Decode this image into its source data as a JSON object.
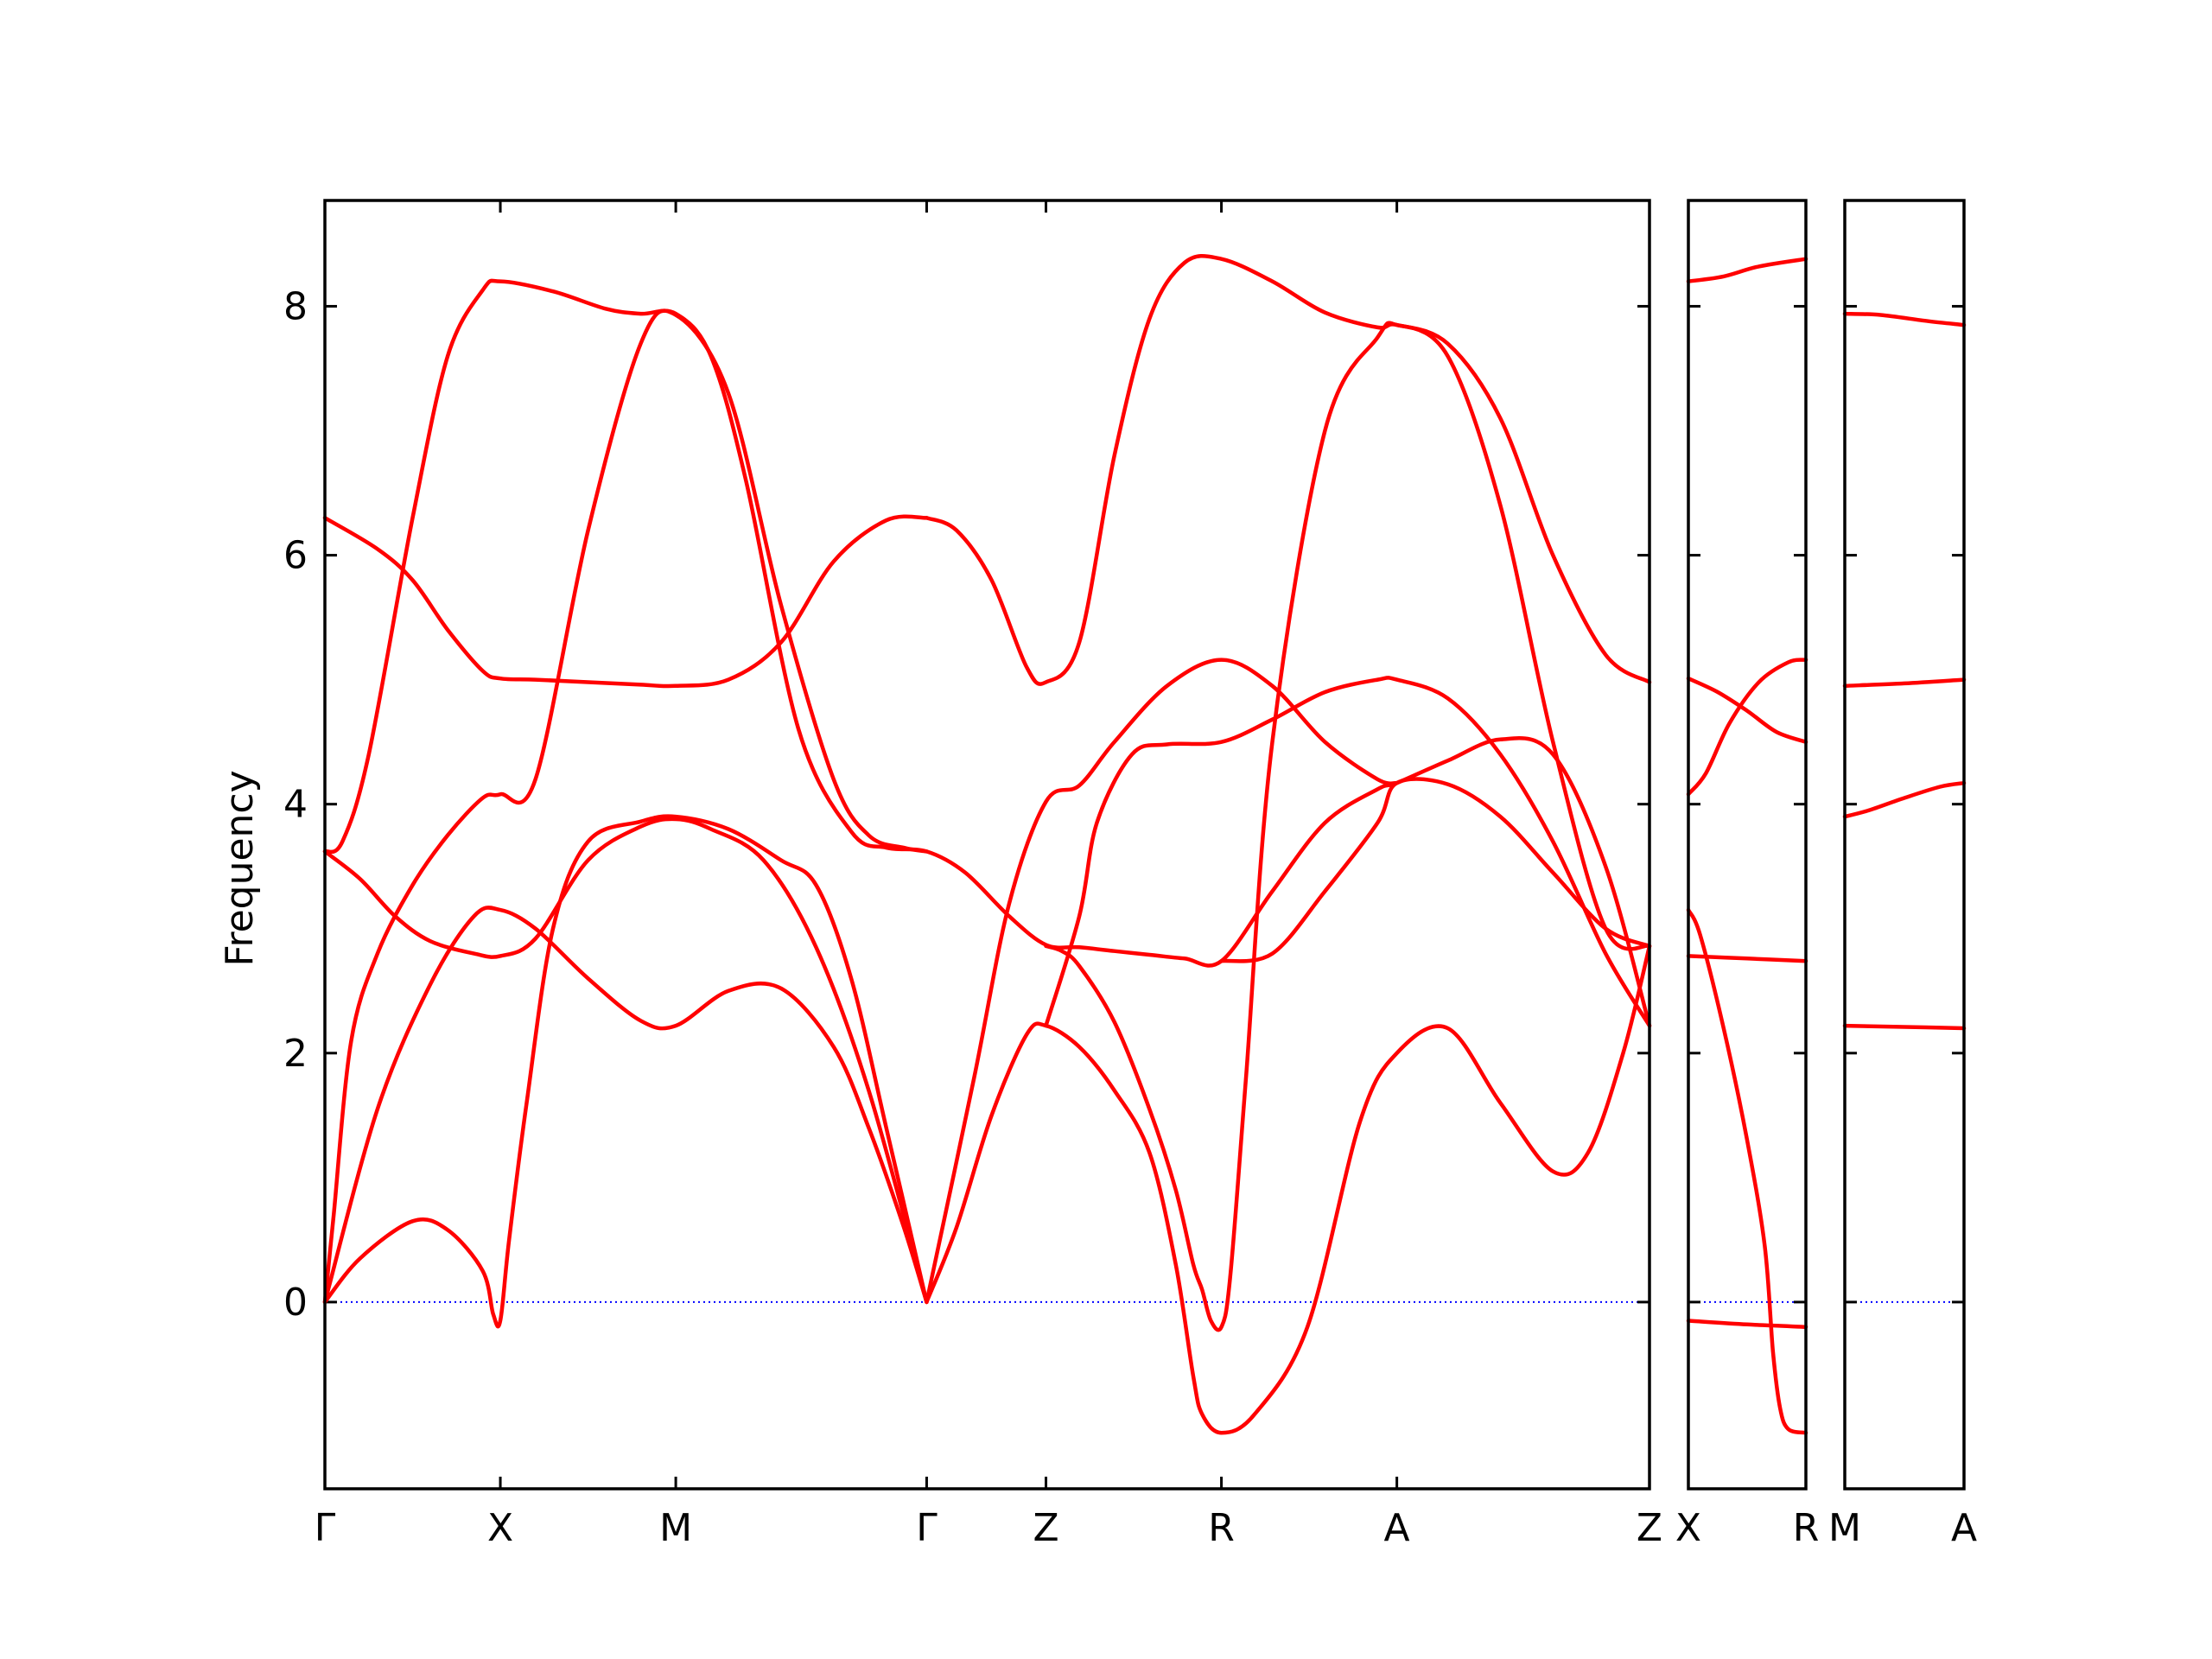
{
  "colors": {
    "band": "#ff0000",
    "zero_line": "#0000ff",
    "frame": "#000000"
  },
  "chart_data": {
    "type": "line",
    "title": "",
    "xlabel": "",
    "ylabel": "Frequency",
    "ylim": [
      -1.5,
      8.85
    ],
    "yticks": [
      0,
      2,
      4,
      6,
      8
    ],
    "grid": false,
    "legend": "none",
    "zero_line": {
      "y": 0,
      "style": "dotted"
    },
    "panels": [
      {
        "xlim": [
          0,
          7.55
        ],
        "ticks": [
          {
            "x": 0,
            "label": "Γ"
          },
          {
            "x": 1.0,
            "label": "X"
          },
          {
            "x": 2.0,
            "label": "M"
          },
          {
            "x": 3.43,
            "label": "Γ"
          },
          {
            "x": 4.11,
            "label": "Z"
          },
          {
            "x": 5.11,
            "label": "R"
          },
          {
            "x": 6.11,
            "label": "A"
          },
          {
            "x": 7.55,
            "label": "Z"
          }
        ],
        "series": [
          {
            "x": [
              0,
              0.1,
              0.25,
              0.5,
              0.7,
              0.9,
              1.0,
              1.3,
              1.6,
              1.8,
              2.0,
              2.2,
              2.4,
              2.7,
              3.0,
              3.2,
              3.43,
              3.65,
              3.9,
              4.11,
              4.3,
              4.5,
              4.7,
              4.9,
              5.11,
              5.4,
              5.7,
              6.0,
              6.11,
              6.4,
              6.7,
              7.0,
              7.3,
              7.55
            ],
            "y": [
              3.62,
              3.7,
              4.4,
              6.3,
              7.6,
              8.13,
              8.2,
              8.12,
              7.98,
              7.94,
              7.94,
              7.6,
              6.6,
              4.6,
              3.78,
              3.65,
              3.62,
              3.45,
              3.1,
              2.87,
              2.85,
              2.82,
              2.79,
              2.76,
              2.74,
              3.3,
              3.85,
              4.12,
              4.17,
              4.35,
              4.52,
              4.4,
              3.5,
              2.22
            ]
          },
          {
            "x": [
              0,
              0.05,
              0.15,
              0.3,
              0.5,
              0.7,
              0.9,
              1.0,
              1.2,
              1.5,
              1.8,
              2.0,
              2.3,
              2.6,
              2.9,
              3.1,
              3.3,
              3.43
            ],
            "y": [
              0,
              0.7,
              2.1,
              2.8,
              3.35,
              3.75,
              4.05,
              4.08,
              4.2,
              6.2,
              7.7,
              7.93,
              7.3,
              5.6,
              4.2,
              3.75,
              3.65,
              3.62
            ]
          },
          {
            "x": [
              0,
              0.3,
              0.5,
              0.7,
              0.9,
              1.0,
              1.2,
              1.5,
              1.8,
              2.0,
              2.3,
              2.6,
              2.9,
              3.2,
              3.43
            ],
            "y": [
              6.3,
              6.05,
              5.8,
              5.4,
              5.07,
              5.01,
              5.0,
              4.98,
              4.96,
              4.95,
              5.0,
              5.3,
              5.95,
              6.28,
              6.3
            ]
          },
          {
            "x": [
              0,
              0.2,
              0.4,
              0.6,
              0.85,
              1.0,
              1.2,
              1.5,
              1.8,
              2.0,
              2.2,
              2.5,
              2.8,
              3.1,
              3.43
            ],
            "y": [
              3.62,
              3.4,
              3.1,
              2.9,
              2.8,
              2.78,
              2.92,
              3.55,
              3.82,
              3.88,
              3.8,
              3.55,
              2.85,
              1.7,
              0
            ]
          },
          {
            "x": [
              0,
              0.3,
              0.6,
              0.85,
              1.0,
              1.2,
              1.5,
              1.8,
              2.0,
              2.3,
              2.6,
              2.9,
              3.1,
              3.3,
              3.43
            ],
            "y": [
              0,
              1.55,
              2.55,
              3.1,
              3.15,
              3.0,
              2.6,
              2.26,
              2.22,
              2.5,
              2.52,
              2.05,
              1.4,
              0.6,
              0
            ]
          },
          {
            "x": [
              0,
              0.2,
              0.5,
              0.7,
              0.9,
              0.96,
              1.0,
              1.05,
              1.15,
              1.3,
              1.5,
              1.8,
              2.0,
              2.3,
              2.6,
              2.8,
              3.0,
              3.2,
              3.43
            ],
            "y": [
              0,
              0.35,
              0.65,
              0.58,
              0.25,
              -0.1,
              -0.15,
              0.5,
              1.6,
              3.0,
              3.7,
              3.86,
              3.9,
              3.8,
              3.55,
              3.35,
              2.6,
              1.4,
              0
            ]
          },
          {
            "x": [
              3.43,
              3.7,
              3.9,
              4.11,
              4.3,
              4.5,
              4.8,
              5.11,
              5.4,
              5.7,
              6.0,
              6.11
            ],
            "y": [
              0,
              1.8,
              3.2,
              4.02,
              4.15,
              4.5,
              4.95,
              5.16,
              4.95,
              4.5,
              4.2,
              4.17
            ]
          },
          {
            "x": [
              3.43,
              3.6,
              3.8,
              4.0,
              4.11,
              4.3,
              4.5,
              4.7,
              4.85,
              4.95,
              5.0,
              5.11,
              5.3,
              5.6,
              5.9,
              6.11,
              6.4,
              6.7,
              7.0,
              7.2,
              7.4,
              7.55
            ],
            "y": [
              0,
              0.6,
              1.5,
              2.15,
              2.22,
              2.05,
              1.7,
              1.2,
              0.3,
              -0.6,
              -0.9,
              -1.05,
              -0.9,
              -0.2,
              1.45,
              2.0,
              2.2,
              1.6,
              1.05,
              1.2,
              2.0,
              2.86
            ]
          },
          {
            "x": [
              4.11,
              4.2,
              4.3,
              4.5,
              4.7,
              4.85,
              4.95,
              5.0,
              5.05,
              5.11,
              5.16,
              5.25,
              5.4,
              5.7,
              6.0,
              6.11,
              6.4,
              6.7,
              7.0,
              7.3,
              7.55
            ],
            "y": [
              2.86,
              2.82,
              2.7,
              2.25,
              1.55,
              0.9,
              0.3,
              0.1,
              -0.15,
              -0.2,
              0.2,
              1.8,
              4.5,
              7.0,
              7.75,
              7.85,
              7.6,
              6.4,
              4.5,
              3.0,
              2.86
            ]
          },
          {
            "x": [
              4.11,
              4.3,
              4.4,
              4.6,
              4.8,
              5.11,
              5.4,
              5.7,
              6.0,
              6.11,
              6.4,
              6.7,
              7.0,
              7.3,
              7.55
            ],
            "y": [
              2.22,
              3.1,
              3.85,
              4.4,
              4.48,
              4.5,
              4.68,
              4.9,
              5.0,
              5.0,
              4.85,
              4.4,
              3.7,
              2.8,
              2.22
            ]
          },
          {
            "x": [
              3.43,
              3.6,
              3.8,
              4.0,
              4.11,
              4.3,
              4.5,
              4.7,
              4.9,
              5.11,
              5.4,
              5.7,
              6.0,
              6.11,
              6.4,
              6.7,
              7.0,
              7.3,
              7.55
            ],
            "y": [
              6.3,
              6.2,
              5.8,
              5.1,
              4.98,
              5.3,
              6.8,
              7.9,
              8.35,
              8.38,
              8.2,
              7.95,
              7.83,
              7.85,
              7.7,
              7.1,
              6.0,
              5.2,
              4.98
            ]
          },
          {
            "x": [
              5.11,
              5.4,
              5.7,
              6.0,
              6.11,
              6.4,
              6.7,
              7.0,
              7.3,
              7.55
            ],
            "y": [
              2.74,
              2.8,
              3.3,
              3.85,
              4.17,
              4.16,
              3.9,
              3.45,
              3.0,
              2.86
            ]
          }
        ]
      },
      {
        "xlim": [
          0,
          1
        ],
        "ticks": [
          {
            "x": 0,
            "label": "X"
          },
          {
            "x": 1,
            "label": "R"
          }
        ],
        "series": [
          {
            "x": [
              0,
              0.3,
              0.6,
              1.0
            ],
            "y": [
              8.2,
              8.24,
              8.32,
              8.38
            ]
          },
          {
            "x": [
              0,
              0.25,
              0.5,
              0.75,
              1.0
            ],
            "y": [
              5.01,
              4.9,
              4.75,
              4.58,
              4.5
            ]
          },
          {
            "x": [
              0,
              0.15,
              0.35,
              0.6,
              0.85,
              1.0
            ],
            "y": [
              4.08,
              4.25,
              4.65,
              4.98,
              5.14,
              5.16
            ]
          },
          {
            "x": [
              0,
              0.5,
              1.0
            ],
            "y": [
              2.78,
              2.76,
              2.74
            ]
          },
          {
            "x": [
              0,
              0.1,
              0.3,
              0.5,
              0.65,
              0.72,
              0.78,
              0.85,
              1.0
            ],
            "y": [
              3.15,
              2.95,
              2.2,
              1.3,
              0.45,
              -0.4,
              -0.85,
              -1.02,
              -1.05
            ]
          },
          {
            "x": [
              0,
              0.5,
              1.0
            ],
            "y": [
              -0.15,
              -0.18,
              -0.2
            ]
          }
        ]
      },
      {
        "xlim": [
          0,
          1
        ],
        "ticks": [
          {
            "x": 0,
            "label": "M"
          },
          {
            "x": 1,
            "label": "A"
          }
        ],
        "series": [
          {
            "x": [
              0,
              0.3,
              0.7,
              1.0
            ],
            "y": [
              7.94,
              7.93,
              7.88,
              7.85
            ]
          },
          {
            "x": [
              0,
              0.5,
              1.0
            ],
            "y": [
              4.95,
              4.97,
              5.0
            ]
          },
          {
            "x": [
              0,
              0.2,
              0.5,
              0.8,
              1.0
            ],
            "y": [
              3.9,
              3.95,
              4.05,
              4.14,
              4.17
            ]
          },
          {
            "x": [
              0,
              0.5,
              1.0
            ],
            "y": [
              2.22,
              2.21,
              2.2
            ]
          }
        ]
      }
    ]
  }
}
